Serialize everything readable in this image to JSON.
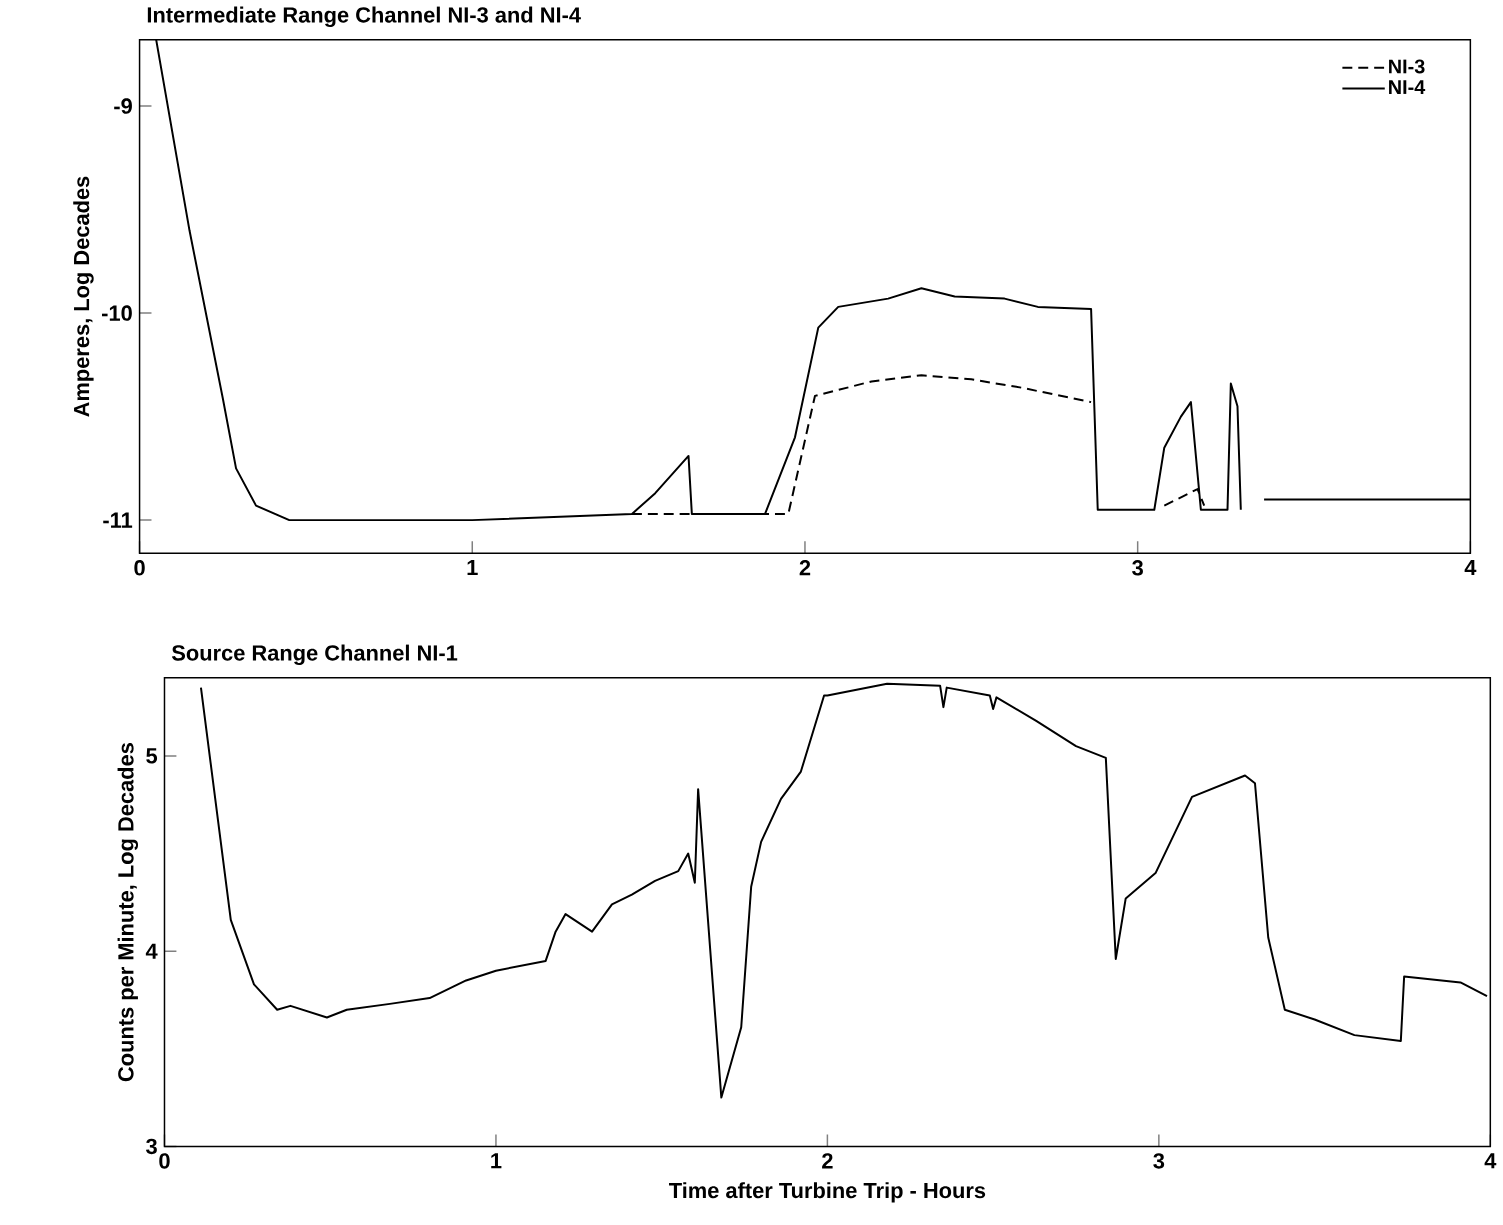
{
  "chart_data": [
    {
      "type": "line",
      "title": "Intermediate Range Channel NI-3 and NI-4",
      "ylabel": "Amperes, Log Decades",
      "xlim": [
        0,
        4
      ],
      "ylim": [
        -11.16,
        -8.68
      ],
      "xticks": [
        0,
        1,
        2,
        3,
        4
      ],
      "yticks": [
        -11,
        -10,
        -9
      ],
      "legend": "top right",
      "series": [
        {
          "name": "NI-3",
          "color": "#000000",
          "line_style": "dashed",
          "x": [
            1.48,
            1.95,
            2.03,
            2.2,
            2.35,
            2.5,
            2.65,
            2.86,
            null,
            3.08,
            3.18,
            3.2
          ],
          "values": [
            -10.97,
            -10.97,
            -10.4,
            -10.33,
            -10.3,
            -10.32,
            -10.36,
            -10.43,
            null,
            -10.93,
            -10.85,
            -10.93
          ]
        },
        {
          "name": "NI-4",
          "color": "#000000",
          "line_style": "solid",
          "x": [
            0.05,
            0.15,
            0.25,
            0.29,
            0.35,
            0.45,
            0.6,
            1.0,
            1.48,
            1.55,
            1.65,
            1.66,
            1.88,
            1.97,
            2.04,
            2.1,
            2.25,
            2.35,
            2.45,
            2.6,
            2.7,
            2.86,
            2.88,
            3.05,
            3.08,
            3.13,
            3.16,
            3.19,
            3.27,
            3.28,
            3.3,
            3.31,
            null,
            3.38,
            4.0
          ],
          "values": [
            -8.68,
            -9.6,
            -10.41,
            -10.75,
            -10.93,
            -11.0,
            -11.0,
            -11.0,
            -10.97,
            -10.87,
            -10.69,
            -10.97,
            -10.97,
            -10.6,
            -10.07,
            -9.97,
            -9.93,
            -9.88,
            -9.92,
            -9.93,
            -9.97,
            -9.98,
            -10.95,
            -10.95,
            -10.65,
            -10.5,
            -10.43,
            -10.95,
            -10.95,
            -10.34,
            -10.45,
            -10.95,
            null,
            -10.9,
            -10.9
          ]
        }
      ]
    },
    {
      "type": "line",
      "title": "Source Range Channel NI-1",
      "xlabel": "Time after Turbine Trip - Hours",
      "ylabel": "Counts per Minute, Log Decades",
      "xlim": [
        0,
        4
      ],
      "ylim": [
        3,
        5.4
      ],
      "xticks": [
        0,
        1,
        2,
        3,
        4
      ],
      "yticks": [
        3,
        4,
        5
      ],
      "series": [
        {
          "color": "#000000",
          "line_style": "solid",
          "x": [
            0.11,
            0.2,
            0.27,
            0.34,
            0.38,
            0.49,
            0.55,
            0.68,
            0.8,
            0.91,
            1.0,
            1.15,
            1.18,
            1.21,
            1.29,
            1.35,
            1.41,
            1.48,
            1.55,
            1.58,
            1.6,
            1.61,
            1.68,
            1.74,
            1.77,
            1.8,
            1.86,
            1.92,
            1.99,
            2.0,
            2.18,
            2.34,
            2.35,
            2.36,
            2.49,
            2.5,
            2.51,
            2.63,
            2.75,
            2.84,
            2.87,
            2.9,
            2.99,
            3.1,
            3.26,
            3.29,
            3.33,
            3.38,
            3.47,
            3.59,
            3.73,
            3.74,
            3.91,
            3.99
          ],
          "values": [
            5.35,
            4.16,
            3.83,
            3.7,
            3.72,
            3.66,
            3.7,
            3.73,
            3.76,
            3.85,
            3.9,
            3.95,
            4.1,
            4.19,
            4.1,
            4.24,
            4.29,
            4.36,
            4.41,
            4.5,
            4.35,
            4.83,
            3.25,
            3.61,
            4.33,
            4.56,
            4.78,
            4.92,
            5.31,
            5.31,
            5.37,
            5.36,
            5.25,
            5.35,
            5.31,
            5.24,
            5.3,
            5.18,
            5.05,
            4.99,
            3.96,
            4.27,
            4.4,
            4.79,
            4.9,
            4.86,
            4.07,
            3.7,
            3.65,
            3.57,
            3.54,
            3.87,
            3.84,
            3.77
          ]
        }
      ]
    }
  ]
}
